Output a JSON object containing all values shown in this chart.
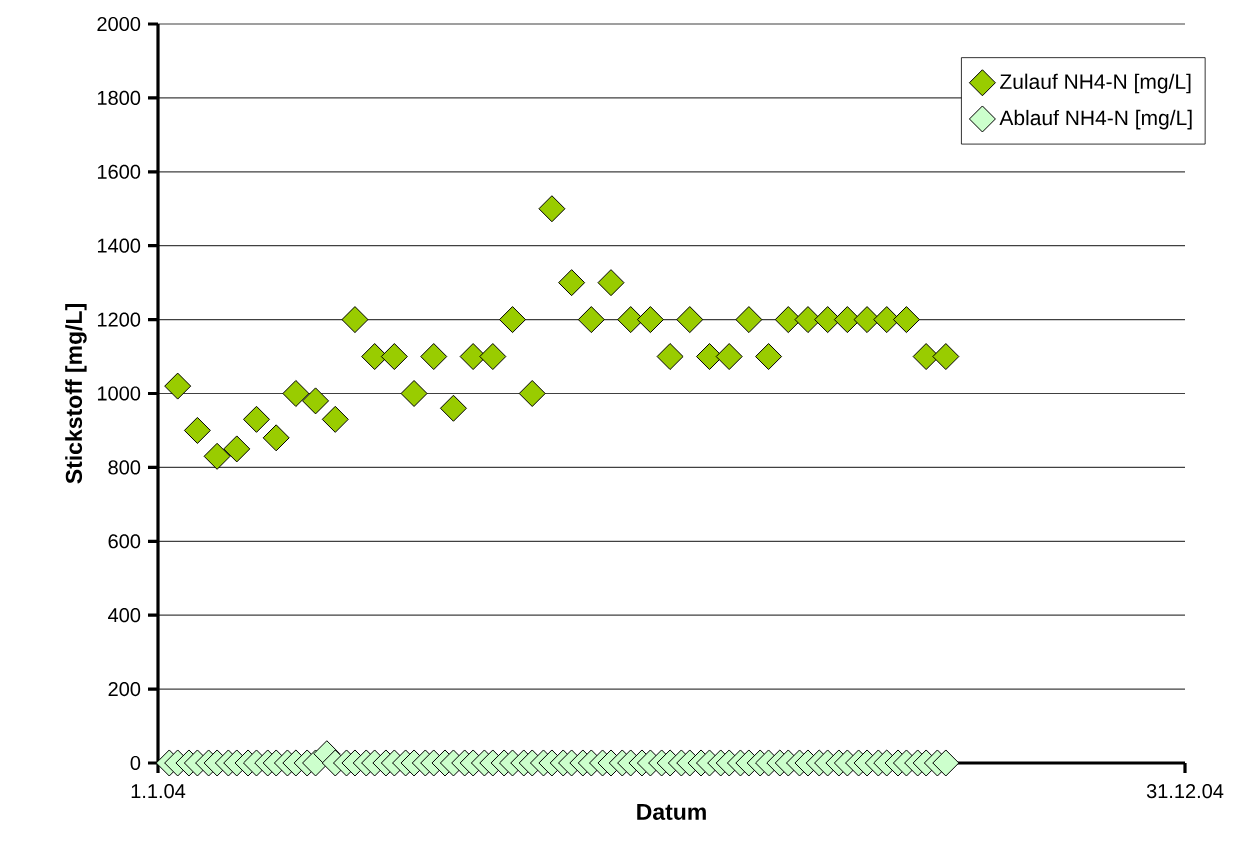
{
  "chart_data": {
    "type": "scatter",
    "xlabel": "Datum",
    "ylabel": "Stickstoff [mg/L]",
    "xlim": [
      "2004-01-01",
      "2004-12-31"
    ],
    "xticks": [
      {
        "value": "2004-01-01",
        "label": "1.1.04"
      },
      {
        "value": "2004-12-31",
        "label": "31.12.04"
      }
    ],
    "ylim": [
      0,
      2000
    ],
    "yticks": [
      0,
      200,
      400,
      600,
      800,
      1000,
      1200,
      1400,
      1600,
      1800,
      2000
    ],
    "grid": "y",
    "legend": "top right",
    "marker": "diamond",
    "series": [
      {
        "name": "Zulauf NH4-N [mg/L]",
        "color": "#99cc00",
        "x": [
          "2004-01-08",
          "2004-01-15",
          "2004-01-22",
          "2004-01-29",
          "2004-02-05",
          "2004-02-12",
          "2004-02-19",
          "2004-02-26",
          "2004-03-04",
          "2004-03-11",
          "2004-03-18",
          "2004-03-25",
          "2004-04-01",
          "2004-04-08",
          "2004-04-15",
          "2004-04-22",
          "2004-04-29",
          "2004-05-06",
          "2004-05-13",
          "2004-05-20",
          "2004-05-27",
          "2004-06-03",
          "2004-06-10",
          "2004-06-17",
          "2004-06-24",
          "2004-07-01",
          "2004-07-08",
          "2004-07-15",
          "2004-07-22",
          "2004-07-29",
          "2004-08-05",
          "2004-08-12",
          "2004-08-19",
          "2004-08-26",
          "2004-09-02",
          "2004-09-09",
          "2004-09-16",
          "2004-09-23",
          "2004-09-30",
          "2004-10-07"
        ],
        "values": [
          1020,
          900,
          830,
          850,
          930,
          880,
          1000,
          980,
          930,
          1200,
          1100,
          1100,
          1000,
          1100,
          960,
          1100,
          1100,
          1200,
          1000,
          1500,
          1300,
          1200,
          1300,
          1200,
          1200,
          1100,
          1200,
          1100,
          1100,
          1200,
          1100,
          1200,
          1200,
          1200,
          1200,
          1200,
          1200,
          1200,
          1100,
          1100
        ]
      },
      {
        "name": "Ablauf NH4-N [mg/L]",
        "color": "#ccffcc",
        "x": [
          "2004-01-05",
          "2004-01-08",
          "2004-01-12",
          "2004-01-15",
          "2004-01-19",
          "2004-01-22",
          "2004-01-26",
          "2004-01-29",
          "2004-02-02",
          "2004-02-05",
          "2004-02-09",
          "2004-02-12",
          "2004-02-16",
          "2004-02-19",
          "2004-02-23",
          "2004-02-26",
          "2004-03-01",
          "2004-03-04",
          "2004-03-08",
          "2004-03-11",
          "2004-03-15",
          "2004-03-18",
          "2004-03-22",
          "2004-03-25",
          "2004-03-29",
          "2004-04-01",
          "2004-04-05",
          "2004-04-08",
          "2004-04-12",
          "2004-04-15",
          "2004-04-19",
          "2004-04-22",
          "2004-04-26",
          "2004-04-29",
          "2004-05-03",
          "2004-05-06",
          "2004-05-10",
          "2004-05-13",
          "2004-05-17",
          "2004-05-20",
          "2004-05-24",
          "2004-05-27",
          "2004-05-31",
          "2004-06-03",
          "2004-06-07",
          "2004-06-10",
          "2004-06-14",
          "2004-06-17",
          "2004-06-21",
          "2004-06-24",
          "2004-06-28",
          "2004-07-01",
          "2004-07-05",
          "2004-07-08",
          "2004-07-12",
          "2004-07-15",
          "2004-07-19",
          "2004-07-22",
          "2004-07-26",
          "2004-07-29",
          "2004-08-02",
          "2004-08-05",
          "2004-08-09",
          "2004-08-12",
          "2004-08-16",
          "2004-08-19",
          "2004-08-23",
          "2004-08-26",
          "2004-08-30",
          "2004-09-02",
          "2004-09-06",
          "2004-09-09",
          "2004-09-13",
          "2004-09-16",
          "2004-09-20",
          "2004-09-23",
          "2004-09-27",
          "2004-09-30",
          "2004-10-04",
          "2004-10-07"
        ],
        "values": [
          0,
          0,
          0,
          0,
          0,
          0,
          0,
          0,
          0,
          0,
          0,
          0,
          0,
          0,
          0,
          0,
          25,
          0,
          0,
          0,
          0,
          0,
          0,
          0,
          0,
          0,
          0,
          0,
          0,
          0,
          0,
          0,
          0,
          0,
          0,
          0,
          0,
          0,
          0,
          0,
          0,
          0,
          0,
          0,
          0,
          0,
          0,
          0,
          0,
          0,
          0,
          0,
          0,
          0,
          0,
          0,
          0,
          0,
          0,
          0,
          0,
          0,
          0,
          0,
          0,
          0,
          0,
          0,
          0,
          0,
          0,
          0,
          0,
          0,
          0,
          0,
          0,
          0,
          0,
          0
        ]
      }
    ]
  }
}
